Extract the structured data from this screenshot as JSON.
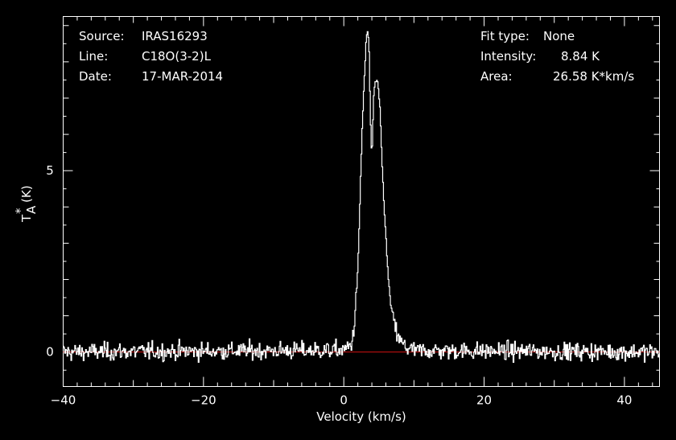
{
  "header": {
    "source_label": "Source:",
    "source_value": "IRAS16293",
    "line_label": "Line:",
    "line_value": "C18O(3-2)L",
    "date_label": "Date:",
    "date_value": "17-MAR-2014",
    "fit_label": "Fit type:",
    "fit_value": "None",
    "intensity_label": "Intensity:",
    "intensity_value": "8.84 K",
    "area_label": "Area:",
    "area_value": "26.58 K*km/s"
  },
  "colors": {
    "background": "#000000",
    "foreground": "#ffffff",
    "baseline": "#d01010"
  },
  "chart_data": {
    "type": "line",
    "xlabel": "Velocity (km/s)",
    "ylabel_main": "T",
    "ylabel_sup": "*",
    "ylabel_sub": "A",
    "ylabel_unit": "(K)",
    "xlim": [
      -40,
      45
    ],
    "ylim": [
      -0.95,
      9.25
    ],
    "x_ticks": [
      -40,
      -20,
      0,
      20,
      40
    ],
    "x_tick_labels": [
      "−40",
      "−20",
      "0",
      "20",
      "40"
    ],
    "y_ticks": [
      0,
      5
    ],
    "y_tick_labels": [
      "0",
      "5"
    ],
    "baseline_y": 0,
    "noise_rms": 0.17,
    "channel_width": 0.11,
    "peak_profile": [
      [
        -40,
        0
      ],
      [
        0.0,
        0.05
      ],
      [
        0.5,
        0.12
      ],
      [
        1.0,
        0.2
      ],
      [
        1.2,
        0.32
      ],
      [
        1.4,
        0.55
      ],
      [
        1.6,
        1.05
      ],
      [
        1.8,
        1.6
      ],
      [
        2.0,
        2.3
      ],
      [
        2.2,
        3.4
      ],
      [
        2.4,
        4.8
      ],
      [
        2.6,
        6.0
      ],
      [
        2.8,
        7.0
      ],
      [
        3.0,
        7.8
      ],
      [
        3.2,
        8.6
      ],
      [
        3.4,
        8.84
      ],
      [
        3.6,
        8.4
      ],
      [
        3.8,
        6.5
      ],
      [
        4.0,
        5.25
      ],
      [
        4.1,
        6.0
      ],
      [
        4.3,
        7.2
      ],
      [
        4.6,
        7.5
      ],
      [
        4.9,
        7.3
      ],
      [
        5.2,
        6.6
      ],
      [
        5.5,
        5.0
      ],
      [
        5.8,
        3.9
      ],
      [
        6.1,
        2.8
      ],
      [
        6.4,
        1.9
      ],
      [
        6.8,
        1.15
      ],
      [
        7.2,
        0.75
      ],
      [
        7.6,
        0.5
      ],
      [
        8.0,
        0.3
      ],
      [
        8.5,
        0.2
      ],
      [
        9.0,
        0.12
      ],
      [
        10.0,
        0.04
      ],
      [
        45,
        0
      ]
    ]
  }
}
